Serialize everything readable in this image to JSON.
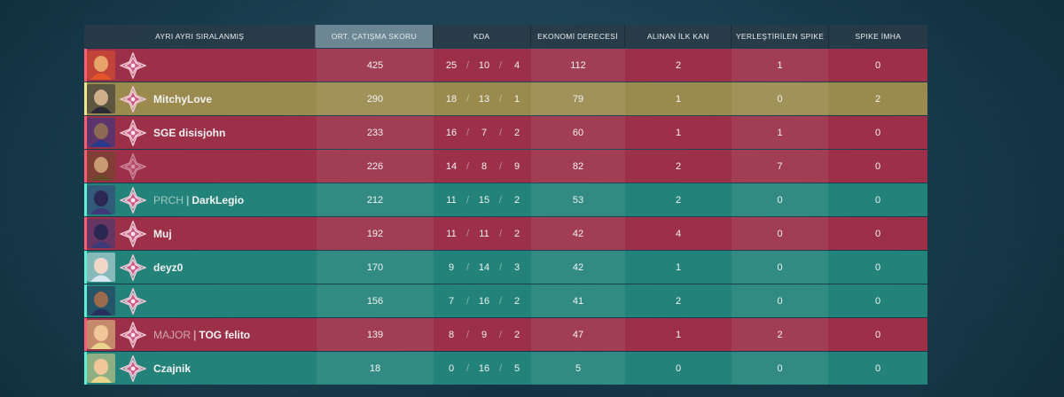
{
  "header": {
    "sort_label": "AYRI AYRI SIRALANMIŞ",
    "col_score": "ORT. ÇATIŞMA SKORU",
    "col_kda": "KDA",
    "col_econ": "EKONOMİ DERECESİ",
    "col_firstblood": "ALINAN İLK KAN",
    "col_plants": "YERLEŞTİRİLEN SPIKE",
    "col_defuses": "SPIKE İMHA"
  },
  "kda_separator": "/",
  "name_separator": "|",
  "colors": {
    "red_team": "#9b3048",
    "teal_team": "#23837a",
    "self": "#9a8a4e"
  },
  "players": [
    {
      "team": "red",
      "name": "",
      "tag": "",
      "score": "425",
      "k": "25",
      "d": "10",
      "a": "4",
      "econ": "112",
      "fb": "2",
      "plants": "1",
      "defuses": "0",
      "agent": "phoenix-icon",
      "rank": "rank-emblem-icon",
      "skin": "#e6a36a",
      "hair": "#e2562c"
    },
    {
      "team": "gold",
      "name": "MitchyLove",
      "tag": "",
      "score": "290",
      "k": "18",
      "d": "13",
      "a": "1",
      "econ": "79",
      "fb": "1",
      "plants": "0",
      "defuses": "2",
      "agent": "chamber-icon",
      "rank": "rank-emblem-icon",
      "skin": "#cfae8c",
      "hair": "#2b2b35"
    },
    {
      "team": "red",
      "name": "SGE disisjohn",
      "tag": "",
      "score": "233",
      "k": "16",
      "d": "7",
      "a": "2",
      "econ": "60",
      "fb": "1",
      "plants": "1",
      "defuses": "0",
      "agent": "yoru-icon",
      "rank": "rank-emblem-icon",
      "skin": "#8d6a55",
      "hair": "#2a3a8a"
    },
    {
      "team": "red",
      "name": "",
      "tag": "",
      "score": "226",
      "k": "14",
      "d": "8",
      "a": "9",
      "econ": "82",
      "fb": "2",
      "plants": "7",
      "defuses": "0",
      "agent": "sova-icon",
      "rank": "rank-emblem-dim-icon",
      "skin": "#c99b72",
      "hair": "#6b4a2a"
    },
    {
      "team": "teal",
      "name": "DarkLegio",
      "tag": "PRCH",
      "score": "212",
      "k": "11",
      "d": "15",
      "a": "2",
      "econ": "53",
      "fb": "2",
      "plants": "0",
      "defuses": "0",
      "agent": "omen-icon",
      "rank": "rank-emblem-icon",
      "skin": "#2a2752",
      "hair": "#3d3a78"
    },
    {
      "team": "red",
      "name": "Muj",
      "tag": "",
      "score": "192",
      "k": "11",
      "d": "11",
      "a": "2",
      "econ": "42",
      "fb": "4",
      "plants": "0",
      "defuses": "0",
      "agent": "omen-icon",
      "rank": "rank-emblem-icon",
      "skin": "#2a2752",
      "hair": "#3d3a78"
    },
    {
      "team": "teal",
      "name": "deyz0",
      "tag": "",
      "score": "170",
      "k": "9",
      "d": "14",
      "a": "3",
      "econ": "42",
      "fb": "1",
      "plants": "0",
      "defuses": "0",
      "agent": "jett-icon",
      "rank": "rank-emblem-icon",
      "skin": "#f1d7c8",
      "hair": "#d9e6ef"
    },
    {
      "team": "teal",
      "name": "",
      "tag": "",
      "score": "156",
      "k": "7",
      "d": "16",
      "a": "2",
      "econ": "41",
      "fb": "2",
      "plants": "0",
      "defuses": "0",
      "agent": "neon-icon",
      "rank": "rank-emblem-icon",
      "skin": "#9b6b4d",
      "hair": "#27305a"
    },
    {
      "team": "red",
      "name": "TOG felito",
      "tag": "MAJOR",
      "score": "139",
      "k": "8",
      "d": "9",
      "a": "2",
      "econ": "47",
      "fb": "1",
      "plants": "2",
      "defuses": "0",
      "agent": "killjoy-icon",
      "rank": "rank-emblem-icon",
      "skin": "#f0c79a",
      "hair": "#e8d48a"
    },
    {
      "team": "teal",
      "name": "Czajnik",
      "tag": "",
      "score": "18",
      "k": "0",
      "d": "16",
      "a": "5",
      "econ": "5",
      "fb": "0",
      "plants": "0",
      "defuses": "0",
      "agent": "killjoy-icon",
      "rank": "rank-emblem-icon",
      "skin": "#f0c79a",
      "hair": "#e8d48a"
    }
  ]
}
